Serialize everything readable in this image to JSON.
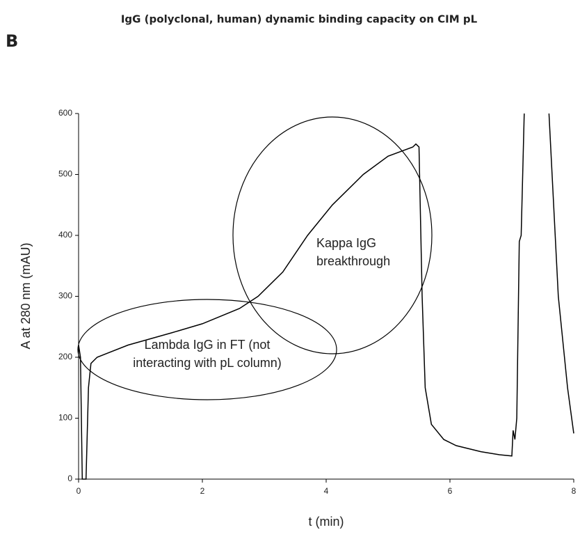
{
  "chart_data": {
    "type": "line",
    "title": "IgG (polyclonal, human) dynamic binding capacity on CIM pL",
    "panel_label": "B",
    "x_label": "t (min)",
    "y_label": "A at 280 nm (mAU)",
    "x": [
      0,
      0.03,
      0.06,
      0.12,
      0.16,
      0.2,
      0.3,
      0.8,
      1.5,
      2.0,
      2.6,
      2.9,
      3.3,
      3.7,
      4.1,
      4.6,
      5.0,
      5.4,
      5.45,
      5.5,
      5.55,
      5.6,
      5.7,
      5.9,
      6.1,
      6.5,
      6.8,
      7.0,
      7.02,
      7.05,
      7.08,
      7.12,
      7.15,
      7.2,
      7.4,
      7.6,
      7.75,
      7.9,
      8.0
    ],
    "values": [
      220,
      200,
      0,
      0,
      150,
      190,
      200,
      220,
      240,
      255,
      280,
      300,
      340,
      400,
      450,
      500,
      530,
      545,
      550,
      545,
      300,
      150,
      90,
      65,
      55,
      45,
      40,
      38,
      80,
      65,
      100,
      390,
      400,
      600,
      null,
      600,
      300,
      150,
      75
    ],
    "color": "#000000",
    "xlim": [
      0,
      8
    ],
    "xticks": [
      0,
      2,
      4,
      6,
      8
    ],
    "ylim": [
      0,
      600
    ],
    "yticks": [
      0,
      100,
      200,
      300,
      400,
      500,
      600
    ],
    "annotations": [
      {
        "lines": [
          "Kappa IgG",
          "breakthrough"
        ]
      },
      {
        "lines": [
          "Lambda IgG in FT (not",
          "interacting with pL column)"
        ]
      }
    ]
  }
}
